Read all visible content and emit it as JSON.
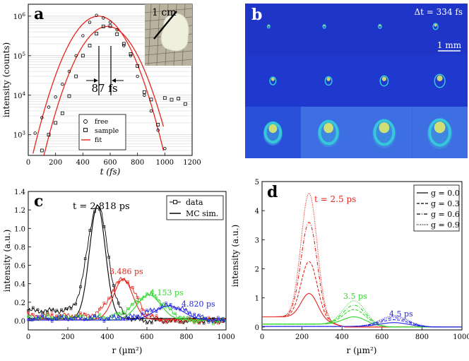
{
  "colors": {
    "black": "#000000",
    "red": "#e8241c",
    "green": "#2fd62a",
    "blue": "#2424e6",
    "tile_bg": "#1f35c8",
    "grid": "#cfcfcf"
  },
  "panel_a": {
    "letter": "a",
    "inset_scale_label": "1 cm",
    "width_annotation": "87 fs"
  },
  "panel_b": {
    "letter": "b",
    "delta_t_label": "Δt = 334 fs",
    "scale_bar_label": "1 mm",
    "grid_rows": 3,
    "grid_cols": 4
  },
  "panel_c": {
    "letter": "c"
  },
  "panel_d": {
    "letter": "d"
  },
  "chart_data": [
    {
      "id": "a",
      "type": "scatter",
      "xlabel": "t (fs)",
      "ylabel": "intensity (counts)",
      "xlim": [
        0,
        1200
      ],
      "ylim": [
        300,
        2000000
      ],
      "yscale": "log",
      "x_ticks": [
        "0",
        "200",
        "400",
        "600",
        "800",
        "1000",
        "1200"
      ],
      "y_ticks": [
        "10^3",
        "10^4",
        "10^5",
        "10^6"
      ],
      "grid": true,
      "legend": {
        "position": "bottom-center",
        "entries": [
          "free",
          "sample",
          "fit"
        ]
      },
      "series": [
        {
          "name": "free",
          "marker": "circle",
          "x": [
            50,
            100,
            150,
            200,
            250,
            300,
            350,
            400,
            450,
            500,
            550,
            600,
            650,
            700,
            750,
            800,
            850,
            900,
            950,
            1000
          ],
          "y": [
            1100,
            2700,
            5000,
            9000,
            19000,
            40000,
            100000,
            320000,
            700000,
            1050000,
            900000,
            700000,
            450000,
            180000,
            100000,
            30000,
            10000,
            4000,
            1300,
            450
          ]
        },
        {
          "name": "sample",
          "marker": "square",
          "x": [
            100,
            150,
            200,
            250,
            300,
            350,
            400,
            450,
            500,
            550,
            600,
            650,
            700,
            750,
            800,
            850,
            900,
            950,
            1000,
            1050,
            1100,
            1150
          ],
          "y": [
            400,
            1000,
            2000,
            3500,
            9500,
            30000,
            100000,
            180000,
            360000,
            550000,
            560000,
            350000,
            200000,
            110000,
            55000,
            12000,
            7800,
            1800,
            8500,
            7700,
            8200,
            6000
          ]
        },
        {
          "name": "fit",
          "curves": [
            {
              "center": 515,
              "peak": 1000000,
              "sigma": 120
            },
            {
              "center": 580,
              "peak": 550000,
              "sigma": 120
            }
          ]
        }
      ]
    },
    {
      "id": "c",
      "type": "line",
      "xlabel": "r (µm²)",
      "ylabel": "intensity (a.u.)",
      "xlim": [
        0,
        1000
      ],
      "ylim": [
        -0.1,
        1.4
      ],
      "x_ticks": [
        "0",
        "200",
        "400",
        "600",
        "800",
        "1000"
      ],
      "y_ticks": [
        "0.0",
        "0.2",
        "0.4",
        "0.6",
        "0.8",
        "1.0",
        "1.2",
        "1.4"
      ],
      "legend": {
        "position": "top-right",
        "entries": [
          "data",
          "MC sim."
        ]
      },
      "series": [
        {
          "label": "t = 2.818 ps",
          "color": "black",
          "peak_x": 350,
          "peak_y": 1.25,
          "width": 50,
          "baseline": 0.12
        },
        {
          "label": "3.486 ps",
          "color": "red",
          "peak_x": 480,
          "peak_y": 0.45,
          "width": 60,
          "baseline": 0.06
        },
        {
          "label": "4.153 ps",
          "color": "green",
          "peak_x": 610,
          "peak_y": 0.28,
          "width": 75,
          "baseline": 0.04
        },
        {
          "label": "4.820 ps",
          "color": "blue",
          "peak_x": 710,
          "peak_y": 0.16,
          "width": 90,
          "baseline": 0.03
        }
      ]
    },
    {
      "id": "d",
      "type": "line",
      "xlabel": "r (µm²)",
      "ylabel": "intensity (a.u.)",
      "xlim": [
        0,
        1000
      ],
      "ylim": [
        -0.1,
        5
      ],
      "x_ticks": [
        "0",
        "200",
        "400",
        "600",
        "800",
        "1000"
      ],
      "y_ticks": [
        "0",
        "1",
        "2",
        "3",
        "4",
        "5"
      ],
      "legend": {
        "position": "top-right",
        "entries": [
          "g = 0.0",
          "g = 0.3",
          "g = 0.6",
          "g = 0.9"
        ]
      },
      "groups": [
        {
          "label": "t = 2.5 ps",
          "color": "red",
          "peak_x": 235,
          "width": 40,
          "baseline": 0.35,
          "peaks": [
            1.15,
            2.25,
            3.6,
            4.6
          ]
        },
        {
          "label": "3.5 ps",
          "color": "green",
          "peak_x": 460,
          "width": 55,
          "baseline": 0.1,
          "peaks": [
            0.35,
            0.6,
            0.75,
            0.9
          ]
        },
        {
          "label": "4.5 ps",
          "color": "blue",
          "peak_x": 660,
          "width": 70,
          "baseline": 0.02,
          "peaks": [
            0.15,
            0.25,
            0.32,
            0.38
          ]
        }
      ]
    }
  ]
}
